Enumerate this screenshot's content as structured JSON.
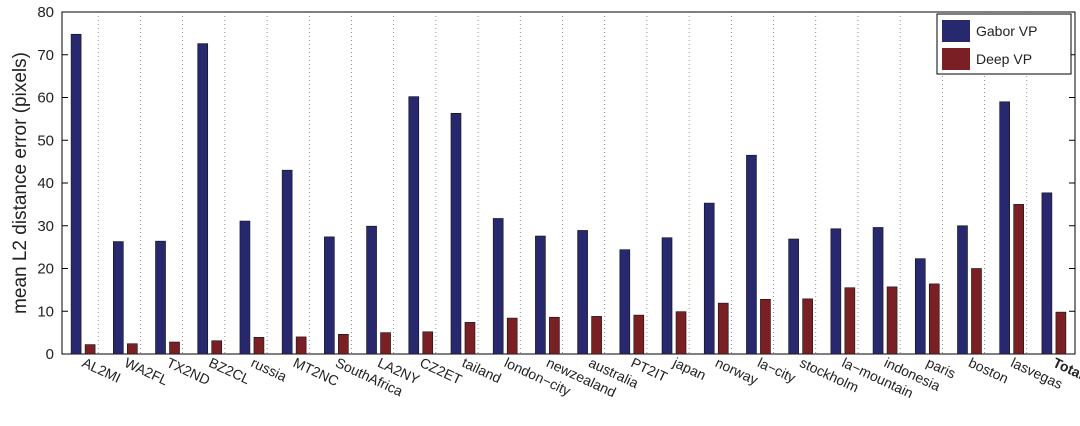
{
  "chart_data": {
    "type": "bar",
    "ylabel": "mean L2 distance error (pixels)",
    "ylim": [
      0,
      80
    ],
    "yticks": [
      0,
      10,
      20,
      30,
      40,
      50,
      60,
      70,
      80
    ],
    "grid": "dotted vertical at categories",
    "legend_position": "top-right",
    "categories": [
      "AL2MI",
      "WA2FL",
      "TX2ND",
      "BZ2CL",
      "russia",
      "MT2NC",
      "SouthAfrica",
      "LA2NY",
      "CZ2ET",
      "tailand",
      "london−city",
      "newzealand",
      "australia",
      "PT2IT",
      "japan",
      "norway",
      "la−city",
      "stockholm",
      "la−mountain",
      "indonesia",
      "paris",
      "boston",
      "lasvegas",
      "Total"
    ],
    "series": [
      {
        "name": "Gabor VP",
        "color": "#28286e",
        "values": [
          74.8,
          26.3,
          26.4,
          72.6,
          31.1,
          43.0,
          27.4,
          29.9,
          60.2,
          56.3,
          31.7,
          27.6,
          28.9,
          24.4,
          27.2,
          35.3,
          46.5,
          26.9,
          29.3,
          29.6,
          22.3,
          30.0,
          59.0,
          37.7
        ]
      },
      {
        "name": "Deep VP",
        "color": "#7a1f24",
        "values": [
          2.2,
          2.4,
          2.8,
          3.1,
          3.9,
          4.0,
          4.6,
          5.0,
          5.2,
          7.4,
          8.4,
          8.6,
          8.8,
          9.1,
          9.9,
          11.9,
          12.8,
          12.9,
          15.5,
          15.7,
          16.4,
          20.0,
          35.0,
          9.8
        ]
      }
    ]
  }
}
